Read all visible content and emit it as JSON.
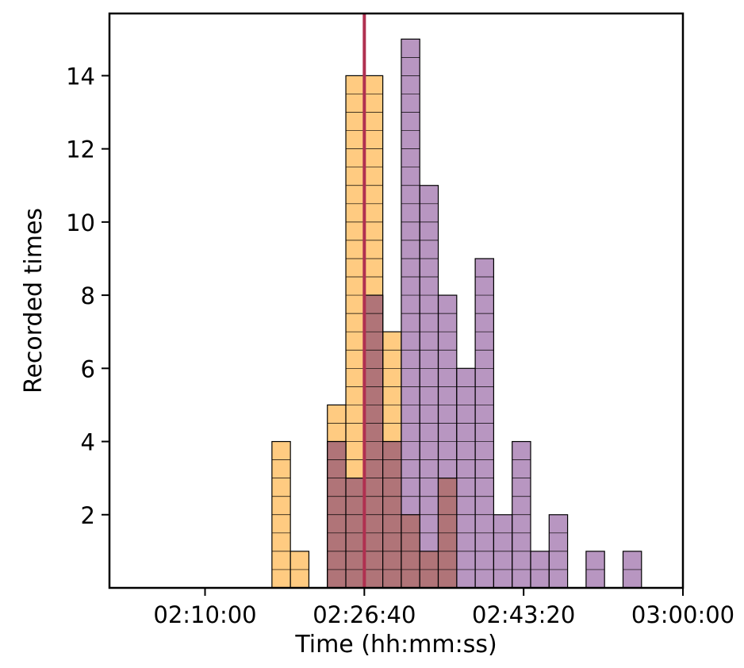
{
  "chart_data": {
    "type": "bar",
    "title": "",
    "xlabel": "Time (hh:mm:ss)",
    "ylabel": "Recorded times",
    "xlim": [
      "02:00:00",
      "03:00:00"
    ],
    "ylim": [
      0,
      15.7
    ],
    "bin_width": "00:01:56",
    "x_ticks": [
      "02:10:00",
      "02:26:40",
      "02:43:20",
      "03:00:00"
    ],
    "y_ticks": [
      2,
      4,
      6,
      8,
      10,
      12,
      14
    ],
    "grid": false,
    "legend": "none",
    "series": [
      {
        "color": "#ffc87a",
        "bins": [
          {
            "start": "02:17:00",
            "end": "02:18:56",
            "value": 4
          },
          {
            "start": "02:18:56",
            "end": "02:20:52",
            "value": 1
          },
          {
            "start": "02:22:48",
            "end": "02:24:44",
            "value": 5
          },
          {
            "start": "02:24:44",
            "end": "02:26:40",
            "value": 14
          },
          {
            "start": "02:26:40",
            "end": "02:28:36",
            "value": 14
          },
          {
            "start": "02:28:36",
            "end": "02:30:32",
            "value": 7
          }
        ]
      },
      {
        "color": "#9a6aa6",
        "bins": [
          {
            "start": "02:22:48",
            "end": "02:24:44",
            "value": 4
          },
          {
            "start": "02:24:44",
            "end": "02:26:40",
            "value": 3
          },
          {
            "start": "02:26:40",
            "end": "02:28:36",
            "value": 8
          },
          {
            "start": "02:28:36",
            "end": "02:30:32",
            "value": 4
          },
          {
            "start": "02:30:32",
            "end": "02:32:28",
            "value": 15
          },
          {
            "start": "02:32:28",
            "end": "02:34:24",
            "value": 11
          },
          {
            "start": "02:34:24",
            "end": "02:36:20",
            "value": 8
          },
          {
            "start": "02:36:20",
            "end": "02:38:16",
            "value": 6
          },
          {
            "start": "02:38:16",
            "end": "02:40:12",
            "value": 9
          },
          {
            "start": "02:40:12",
            "end": "02:42:08",
            "value": 2
          },
          {
            "start": "02:42:08",
            "end": "02:44:04",
            "value": 4
          },
          {
            "start": "02:44:04",
            "end": "02:46:00",
            "value": 1
          },
          {
            "start": "02:46:00",
            "end": "02:47:56",
            "value": 2
          },
          {
            "start": "02:49:52",
            "end": "02:51:48",
            "value": 1
          },
          {
            "start": "02:53:44",
            "end": "02:55:40",
            "value": 1
          }
        ]
      }
    ],
    "overlap": {
      "color": "#b07478",
      "bins": [
        {
          "start": "02:22:48",
          "end": "02:24:44",
          "value": 4
        },
        {
          "start": "02:24:44",
          "end": "02:26:40",
          "value": 3
        },
        {
          "start": "02:26:40",
          "end": "02:28:36",
          "value": 8
        },
        {
          "start": "02:28:36",
          "end": "02:30:32",
          "value": 4
        },
        {
          "start": "02:30:32",
          "end": "02:32:28",
          "value": 2
        },
        {
          "start": "02:32:28",
          "end": "02:34:24",
          "value": 1
        },
        {
          "start": "02:34:24",
          "end": "02:36:20",
          "value": 3
        }
      ]
    },
    "reference_line": {
      "x": "02:26:40",
      "color": "#b03050"
    }
  }
}
